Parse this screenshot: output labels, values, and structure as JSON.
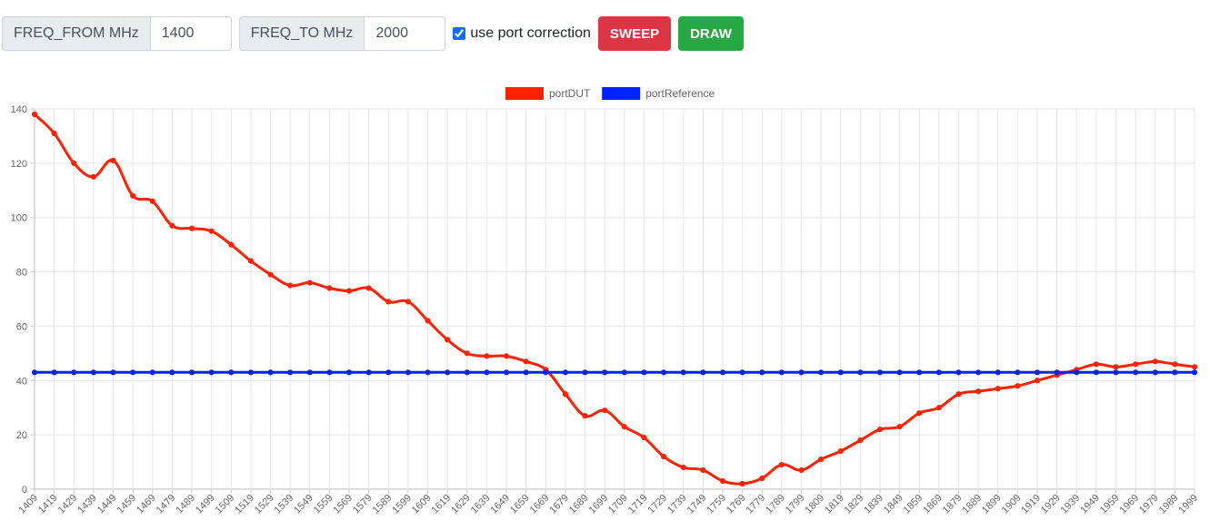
{
  "toolbar": {
    "freq_from_label": "FREQ_FROM MHz",
    "freq_from_value": "1400",
    "freq_to_label": "FREQ_TO MHz",
    "freq_to_value": "2000",
    "port_correction_label": "use port correction",
    "port_correction_checked": true,
    "sweep_label": "SWEEP",
    "draw_label": "DRAW"
  },
  "colors": {
    "dut": "#ff2200",
    "reference": "#0022ff",
    "sweep": "#dc3545",
    "draw": "#28a745"
  },
  "chart_data": {
    "type": "line",
    "title": "",
    "xlabel": "",
    "ylabel": "",
    "ylim": [
      0,
      140
    ],
    "yticks": [
      0,
      20,
      40,
      60,
      80,
      100,
      120,
      140
    ],
    "grid": true,
    "legend_position": "top-center",
    "x": [
      1409,
      1419,
      1429,
      1439,
      1449,
      1459,
      1469,
      1479,
      1489,
      1499,
      1509,
      1519,
      1529,
      1539,
      1549,
      1559,
      1569,
      1579,
      1589,
      1599,
      1609,
      1619,
      1629,
      1639,
      1649,
      1659,
      1669,
      1679,
      1689,
      1699,
      1709,
      1719,
      1729,
      1739,
      1749,
      1759,
      1769,
      1779,
      1789,
      1799,
      1809,
      1819,
      1829,
      1839,
      1849,
      1859,
      1869,
      1879,
      1889,
      1899,
      1909,
      1919,
      1929,
      1939,
      1949,
      1959,
      1969,
      1979,
      1989,
      1999
    ],
    "series": [
      {
        "name": "portDUT",
        "color": "#ff2200",
        "values": [
          138,
          131,
          120,
          115,
          121,
          108,
          106,
          97,
          96,
          95,
          90,
          84,
          79,
          75,
          76,
          74,
          73,
          74,
          69,
          69,
          62,
          55,
          50,
          49,
          49,
          47,
          44,
          35,
          27,
          29,
          23,
          19,
          12,
          8,
          7,
          3,
          2,
          4,
          9,
          7,
          11,
          14,
          18,
          22,
          23,
          28,
          30,
          35,
          36,
          37,
          38,
          40,
          42,
          44,
          46,
          45,
          46,
          47,
          46,
          45
        ]
      },
      {
        "name": "portReference",
        "color": "#0022ff",
        "values": [
          43,
          43,
          43,
          43,
          43,
          43,
          43,
          43,
          43,
          43,
          43,
          43,
          43,
          43,
          43,
          43,
          43,
          43,
          43,
          43,
          43,
          43,
          43,
          43,
          43,
          43,
          43,
          43,
          43,
          43,
          43,
          43,
          43,
          43,
          43,
          43,
          43,
          43,
          43,
          43,
          43,
          43,
          43,
          43,
          43,
          43,
          43,
          43,
          43,
          43,
          43,
          43,
          43,
          43,
          43,
          43,
          43,
          43,
          43,
          43
        ]
      }
    ]
  }
}
